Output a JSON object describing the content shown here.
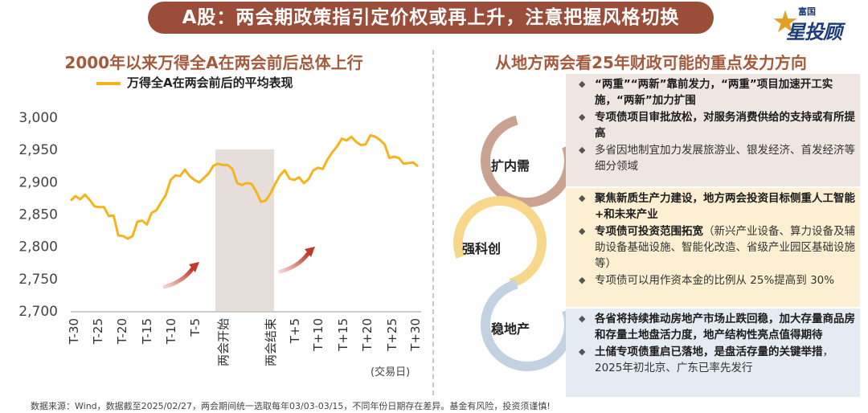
{
  "header": {
    "title": "A股：两会期政策指引定价权或再上升，注意把握风格切换"
  },
  "logo": {
    "small": "富国",
    "big": "星投顾"
  },
  "left": {
    "title": "2000年以来万得全A在两会前后总体上行",
    "legend": "万得全A在两会前后的平均表现"
  },
  "right": {
    "title": "从地方两会看25年财政可能的重点发力方向"
  },
  "chart_data": {
    "type": "line",
    "series": [
      {
        "name": "万得全A在两会前后的平均表现",
        "values": [
          2871,
          2878,
          2873,
          2880,
          2872,
          2862,
          2861,
          2861,
          2847,
          2848,
          2817,
          2816,
          2812,
          2816,
          2838,
          2840,
          2834,
          2852,
          2856,
          2868,
          2880,
          2903,
          2910,
          2909,
          2919,
          2909,
          2903,
          2899,
          2906,
          2913,
          2925,
          2928,
          2926,
          2926,
          2920,
          2898,
          2895,
          2898,
          2897,
          2885,
          2869,
          2871,
          2882,
          2897,
          2910,
          2918,
          2905,
          2903,
          2907,
          2898,
          2904,
          2918,
          2922,
          2920,
          2935,
          2946,
          2955,
          2967,
          2964,
          2970,
          2962,
          2957,
          2958,
          2972,
          2970,
          2965,
          2958,
          2937,
          2939,
          2937,
          2928,
          2929,
          2930,
          2924
        ]
      }
    ],
    "x_ticks": [
      "T-30",
      "T-25",
      "T-20",
      "T-15",
      "T-10",
      "T-5",
      "两会开始",
      "两会结束",
      "T+5",
      "T+10",
      "T+15",
      "T+20",
      "T+25",
      "T+30"
    ],
    "y_ticks": [
      "3,000",
      "2,950",
      "2,900",
      "2,850",
      "2,800",
      "2,750",
      "2,700"
    ],
    "ylim": [
      2700,
      3000
    ],
    "xlabel": "(交易日)",
    "shaded_region": "两会开始 to 两会结束",
    "color": "#f5b41e"
  },
  "circles": [
    {
      "label": "扩内需",
      "color": "#c9a38f"
    },
    {
      "label": "强科创",
      "color": "#f7d88a"
    },
    {
      "label": "稳地产",
      "color": "#c3d2e2"
    }
  ],
  "panels": [
    {
      "items": [
        {
          "bold": "“两重”“两新”靠前发力，“两重”项目加速开工实施，“两新”加力扩围",
          "normal": ""
        },
        {
          "bold": "专项债项目审批放松，对服务消费供给的支持或有所提高",
          "normal": ""
        },
        {
          "bold": "",
          "normal": "多省因地制宜加力发展旅游业、银发经济、首发经济等细分领域"
        }
      ]
    },
    {
      "items": [
        {
          "bold": "聚焦新质生产力建设，地方两会投资目标侧重人工智能+和未来产业",
          "normal": ""
        },
        {
          "bold": "专项债可投资范围拓宽",
          "normal": "（新兴产业设备、算力设备及辅助设备基础设施、智能化改造、省级产业园区基础设施等）"
        },
        {
          "bold": "",
          "normal": "专项债可以用作资本金的比例从 25%提高到 30%"
        }
      ]
    },
    {
      "items": [
        {
          "bold": "各省将持续推动房地产市场止跌回稳，加大存量商品房和存量土地盘活力度，地产结构性亮点值得期待",
          "normal": ""
        },
        {
          "bold": "土储专项债重启已落地，是盘活存量的关键举措",
          "normal": "，2025年初北京、广东已率先发行"
        }
      ]
    }
  ],
  "footer": "数据来源：Wind，数据截至2025/02/27，两会期间统一选取每年03/03-03/15，不同年份日期存在差异。基金有风险，投资须谨慎!"
}
